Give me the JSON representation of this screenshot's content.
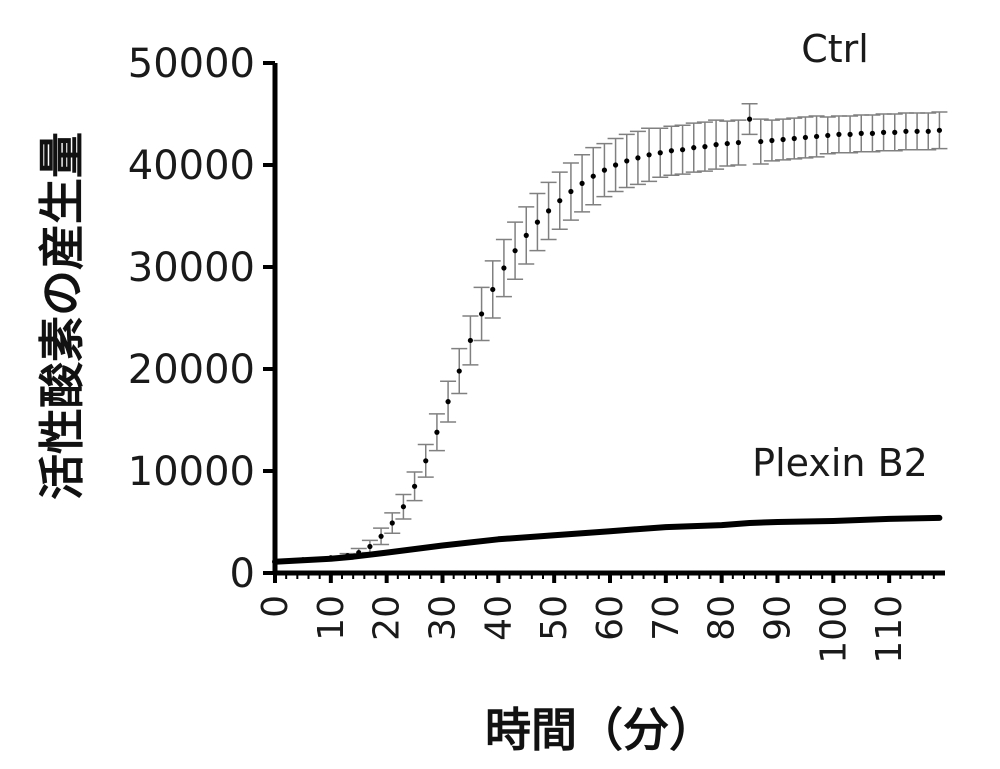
{
  "chart_data": {
    "type": "line",
    "xlabel": "時間（分）",
    "ylabel": "活性酸素の産生量",
    "xlim": [
      0,
      120
    ],
    "ylim": [
      0,
      50000
    ],
    "x_ticks": [
      "0",
      "10",
      "20",
      "30",
      "40",
      "50",
      "60",
      "70",
      "80",
      "90",
      "100",
      "110"
    ],
    "y_ticks": [
      "0",
      "10000",
      "20000",
      "30000",
      "40000",
      "50000"
    ],
    "grid": false,
    "series": [
      {
        "name": "Ctrl",
        "color": "#808080",
        "marker_color": "#000000",
        "x": [
          0,
          5,
          10,
          13,
          15,
          17,
          19,
          21,
          23,
          25,
          27,
          29,
          31,
          33,
          35,
          37,
          39,
          41,
          43,
          45,
          47,
          49,
          51,
          53,
          55,
          57,
          59,
          61,
          63,
          65,
          67,
          69,
          71,
          73,
          75,
          77,
          79,
          81,
          83,
          85,
          87,
          89,
          91,
          93,
          95,
          97,
          99,
          101,
          103,
          105,
          107,
          109,
          111,
          113,
          115,
          117,
          119
        ],
        "values": [
          1200,
          1300,
          1500,
          1700,
          2000,
          2600,
          3600,
          4900,
          6500,
          8500,
          11000,
          13800,
          16800,
          19800,
          22800,
          25400,
          27800,
          29900,
          31600,
          33100,
          34400,
          35500,
          36500,
          37400,
          38200,
          38900,
          39500,
          40000,
          40400,
          40700,
          41000,
          41200,
          41400,
          41500,
          41700,
          41800,
          42000,
          42100,
          42200,
          44500,
          42300,
          42400,
          42500,
          42600,
          42700,
          42800,
          42900,
          43000,
          43000,
          43100,
          43100,
          43200,
          43200,
          43300,
          43300,
          43300,
          43400
        ],
        "error": [
          0,
          0,
          0,
          200,
          400,
          600,
          800,
          1000,
          1200,
          1400,
          1600,
          1800,
          2000,
          2200,
          2400,
          2600,
          2800,
          2800,
          2800,
          2800,
          2800,
          2800,
          2800,
          2800,
          2800,
          2800,
          2600,
          2600,
          2600,
          2600,
          2600,
          2400,
          2400,
          2400,
          2400,
          2400,
          2400,
          2200,
          2200,
          1500,
          2200,
          2000,
          2000,
          2000,
          2000,
          2000,
          1800,
          1800,
          1800,
          1800,
          1800,
          1800,
          1800,
          1800,
          1800,
          1800,
          1800
        ]
      },
      {
        "name": "Plexin B2",
        "color": "#000000",
        "x": [
          0,
          10,
          14,
          20,
          30,
          40,
          50,
          60,
          70,
          80,
          85,
          90,
          100,
          110,
          119
        ],
        "values": [
          1100,
          1400,
          1600,
          2000,
          2700,
          3300,
          3700,
          4100,
          4500,
          4700,
          4900,
          5000,
          5100,
          5300,
          5400
        ]
      }
    ]
  }
}
